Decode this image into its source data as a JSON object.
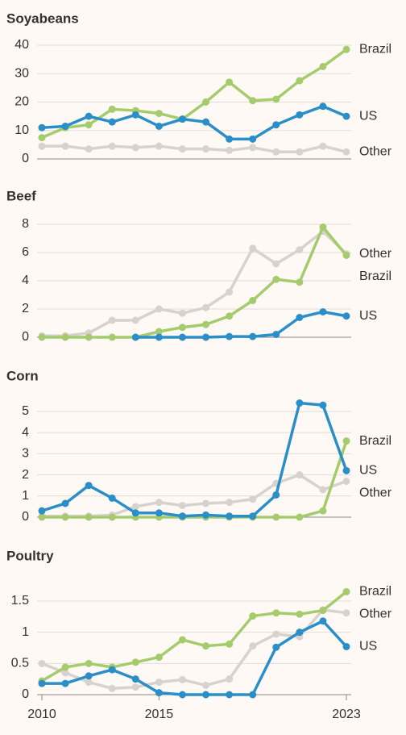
{
  "chart_data": [
    {
      "type": "line",
      "title": "Soyabeans",
      "x": [
        2010,
        2011,
        2012,
        2013,
        2014,
        2015,
        2016,
        2017,
        2018,
        2019,
        2020,
        2021,
        2022,
        2023
      ],
      "xlim": [
        2010,
        2023
      ],
      "ylim": [
        0,
        40
      ],
      "yticks": [
        0,
        10,
        20,
        30,
        40
      ],
      "grid": true,
      "series": [
        {
          "name": "Other",
          "color": "#d8d2cf",
          "values": [
            4.5,
            4.5,
            3.5,
            4.5,
            4,
            4.5,
            3.5,
            3.5,
            3,
            4,
            2.5,
            2.5,
            4.5,
            2.5
          ]
        },
        {
          "name": "Brazil",
          "color": "#a4cc6c",
          "values": [
            7.5,
            11,
            12,
            17.5,
            17,
            16,
            14,
            20,
            27,
            20.5,
            21,
            27.5,
            32.5,
            38.5
          ]
        },
        {
          "name": "US",
          "color": "#2a8fc8",
          "values": [
            11,
            11.5,
            15,
            13,
            15.5,
            11.5,
            14,
            13,
            7,
            7,
            12,
            15.5,
            18.5,
            15
          ]
        }
      ]
    },
    {
      "type": "line",
      "title": "Beef",
      "x": [
        2010,
        2011,
        2012,
        2013,
        2014,
        2015,
        2016,
        2017,
        2018,
        2019,
        2020,
        2021,
        2022,
        2023
      ],
      "xlim": [
        2010,
        2023
      ],
      "ylim": [
        0,
        8.3
      ],
      "yticks": [
        0,
        2,
        4,
        6,
        8
      ],
      "grid": true,
      "series": [
        {
          "name": "Other",
          "color": "#d8d2cf",
          "values": [
            0.1,
            0.1,
            0.3,
            1.2,
            1.2,
            2.0,
            1.7,
            2.1,
            3.2,
            6.3,
            5.2,
            6.2,
            7.5,
            5.9
          ]
        },
        {
          "name": "Brazil",
          "color": "#a4cc6c",
          "values": [
            0,
            0,
            0,
            0,
            0,
            0.4,
            0.7,
            0.9,
            1.5,
            2.6,
            4.1,
            3.9,
            7.8,
            5.8
          ]
        },
        {
          "name": "US",
          "color": "#2a8fc8",
          "values": [
            null,
            null,
            null,
            null,
            0,
            0,
            0,
            0,
            0.05,
            0.05,
            0.2,
            1.4,
            1.8,
            1.5
          ]
        }
      ]
    },
    {
      "type": "line",
      "title": "Corn",
      "x": [
        2010,
        2011,
        2012,
        2013,
        2014,
        2015,
        2016,
        2017,
        2018,
        2019,
        2020,
        2021,
        2022,
        2023
      ],
      "xlim": [
        2010,
        2023
      ],
      "ylim": [
        0,
        5.5
      ],
      "yticks": [
        0,
        1,
        2,
        3,
        4,
        5
      ],
      "grid": true,
      "series": [
        {
          "name": "Other",
          "color": "#d8d2cf",
          "values": [
            0.05,
            0.05,
            0.05,
            0.1,
            0.5,
            0.7,
            0.55,
            0.65,
            0.7,
            0.85,
            1.6,
            2.0,
            1.3,
            1.7
          ]
        },
        {
          "name": "Brazil",
          "color": "#a4cc6c",
          "values": [
            0,
            0,
            0,
            0,
            0,
            0,
            0,
            0,
            0,
            0,
            0,
            0,
            0.3,
            3.6
          ]
        },
        {
          "name": "US",
          "color": "#2a8fc8",
          "values": [
            0.3,
            0.65,
            1.5,
            0.9,
            0.2,
            0.2,
            0.05,
            0.1,
            0.05,
            0.05,
            1.05,
            5.4,
            5.3,
            2.2
          ]
        }
      ]
    },
    {
      "type": "line",
      "title": "Poultry",
      "x": [
        2010,
        2011,
        2012,
        2013,
        2014,
        2015,
        2016,
        2017,
        2018,
        2019,
        2020,
        2021,
        2022,
        2023
      ],
      "xlim": [
        2010,
        2023
      ],
      "xticks": [
        2010,
        2015,
        2023
      ],
      "ylim": [
        0,
        1.7
      ],
      "yticks": [
        0,
        0.5,
        1,
        1.5
      ],
      "grid": true,
      "series": [
        {
          "name": "Other",
          "color": "#d8d2cf",
          "values": [
            0.5,
            0.35,
            0.2,
            0.1,
            0.12,
            0.2,
            0.24,
            0.15,
            0.25,
            0.78,
            0.97,
            0.93,
            1.36,
            1.31
          ]
        },
        {
          "name": "Brazil",
          "color": "#a4cc6c",
          "values": [
            0.22,
            0.44,
            0.5,
            0.44,
            0.52,
            0.6,
            0.88,
            0.78,
            0.81,
            1.26,
            1.31,
            1.29,
            1.35,
            1.65
          ]
        },
        {
          "name": "US",
          "color": "#2a8fc8",
          "values": [
            0.18,
            0.18,
            0.3,
            0.4,
            0.25,
            0.03,
            0,
            0,
            0,
            0,
            0.76,
            1.0,
            1.18,
            0.77
          ]
        }
      ]
    }
  ]
}
